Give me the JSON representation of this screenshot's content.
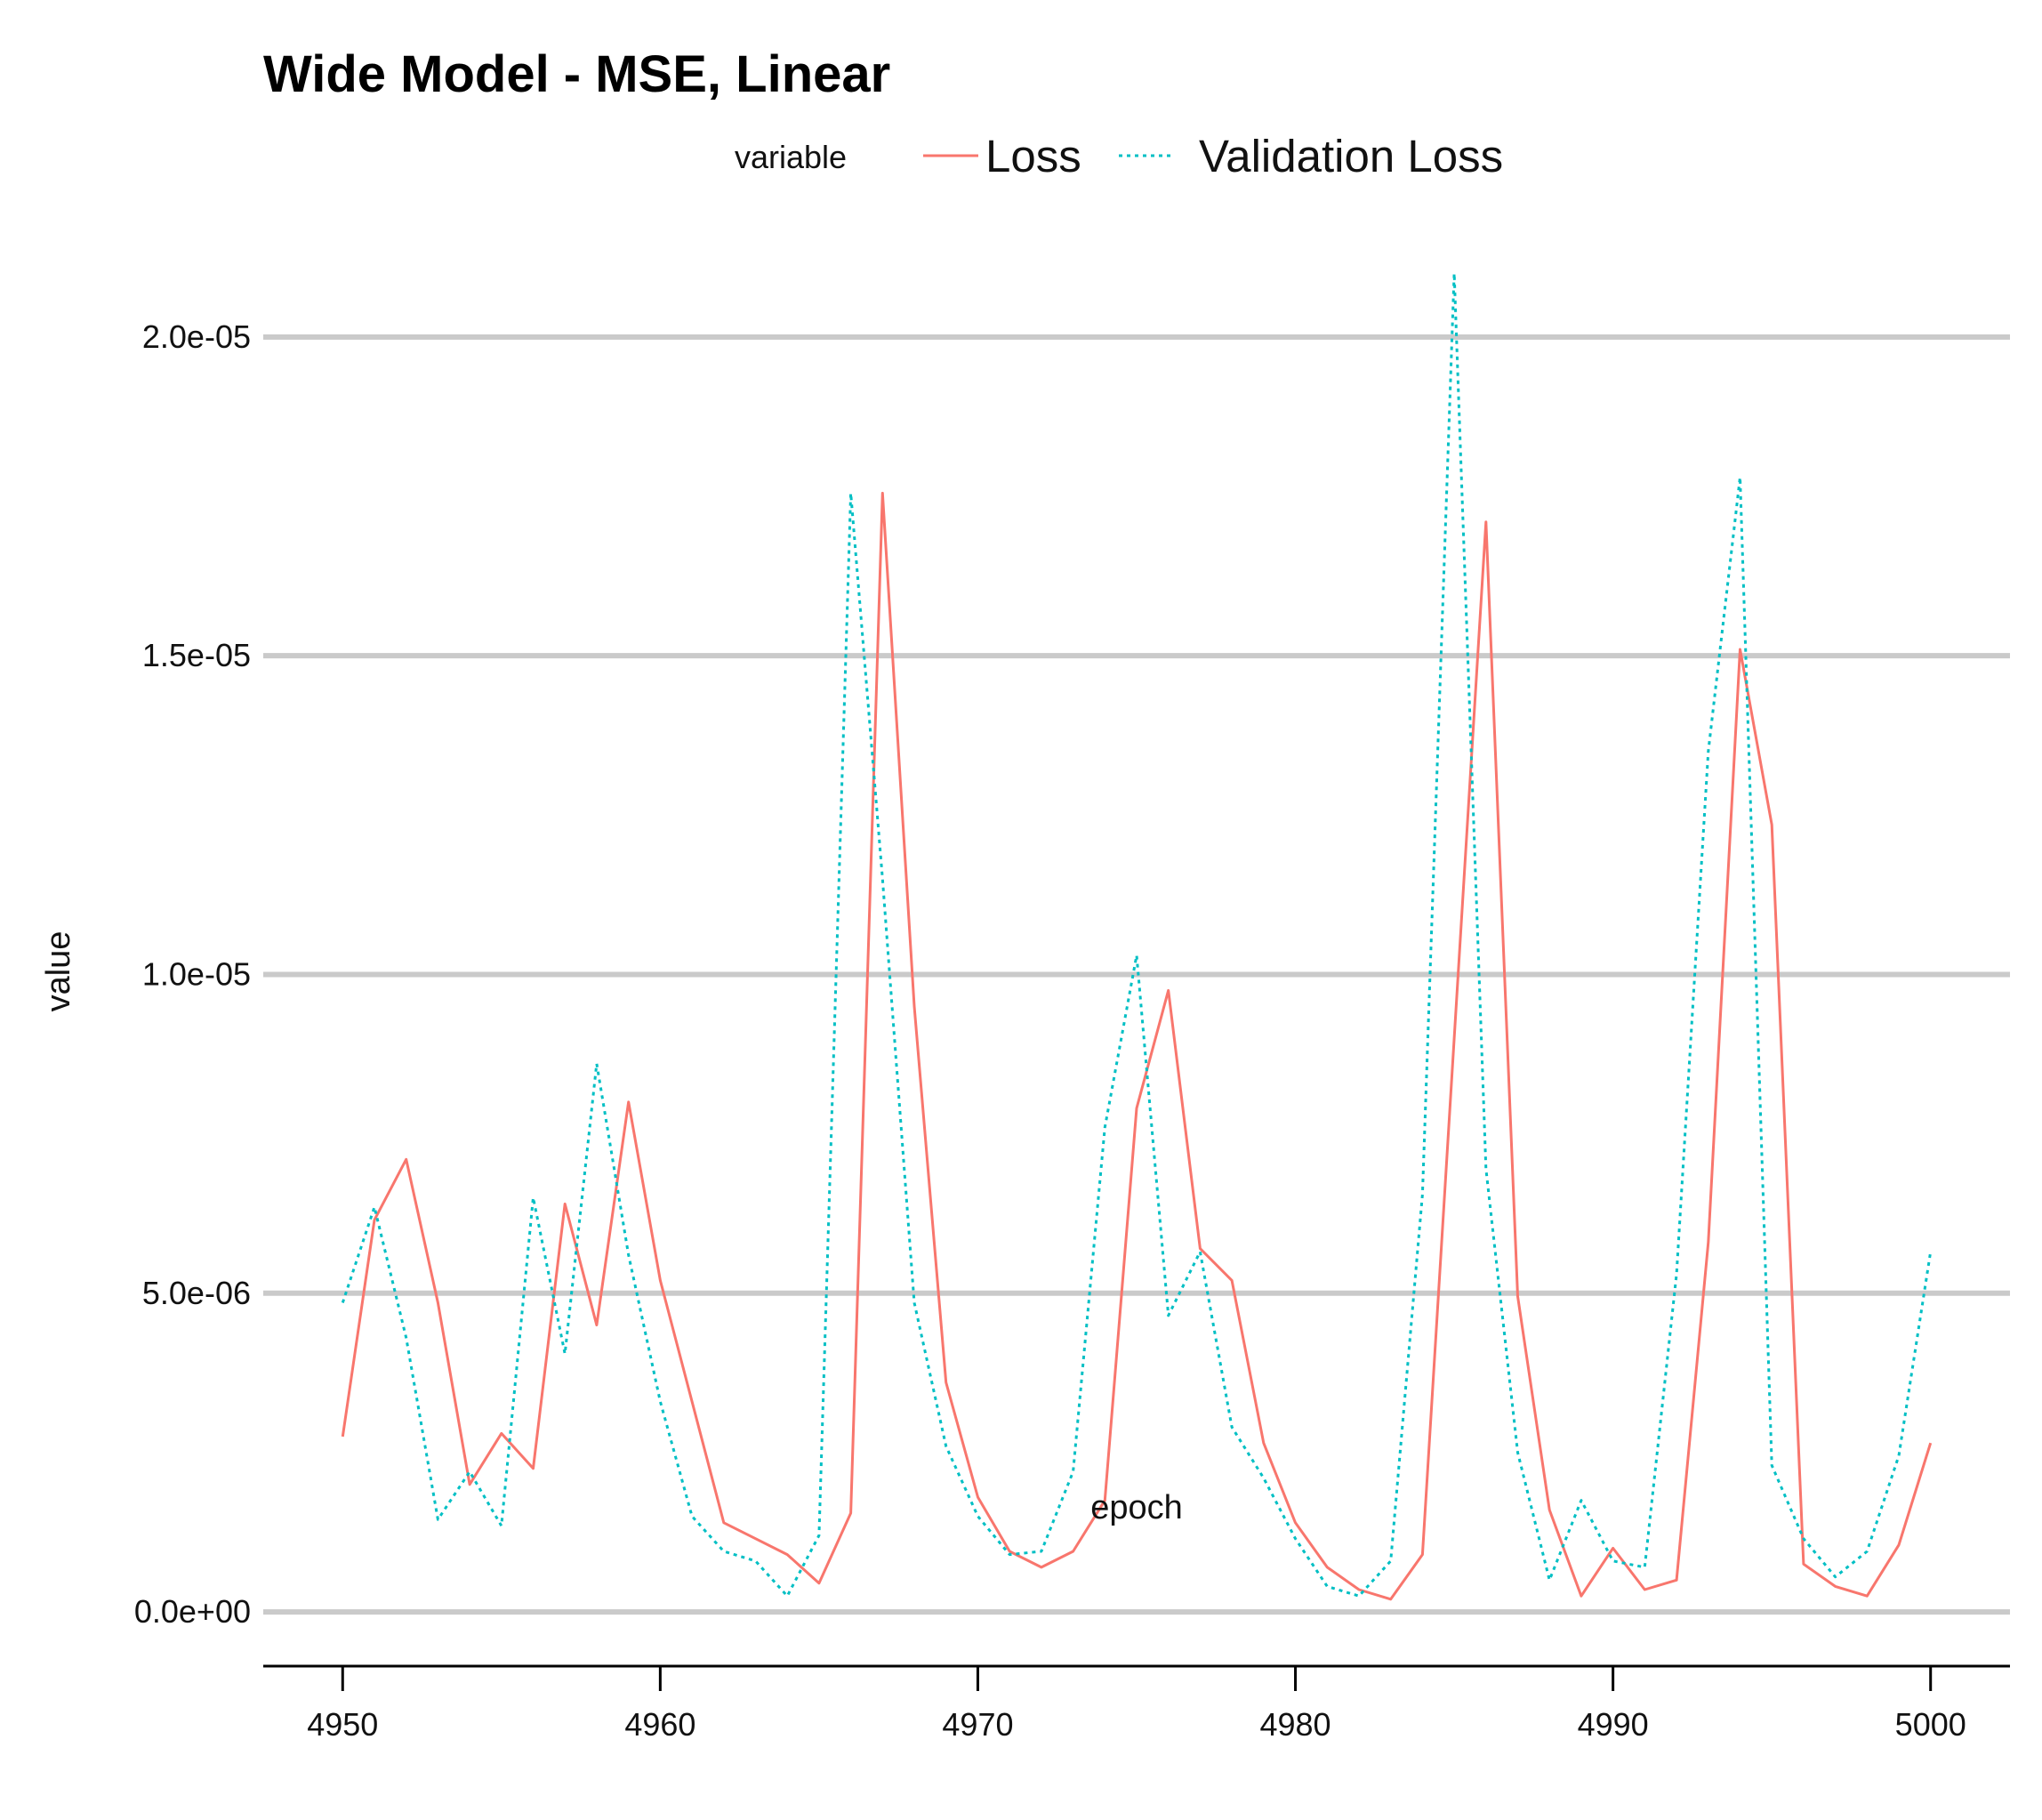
{
  "chart_data": {
    "type": "line",
    "title": "Wide Model - MSE, Linear",
    "xlabel": "epoch",
    "ylabel": "value",
    "legend_title": "variable",
    "legend_position": "top",
    "grid": "horizontal-major",
    "xlim": [
      4947.5,
      5002.5
    ],
    "ylim": [
      -8.5e-07,
      2.11e-05
    ],
    "x_ticks": [
      4950,
      4960,
      4970,
      4980,
      4990,
      5000
    ],
    "x_tick_labels": [
      "4950",
      "4960",
      "4970",
      "4980",
      "4990",
      "5000"
    ],
    "y_ticks": [
      0,
      5e-06,
      1e-05,
      1.5e-05,
      2e-05
    ],
    "y_tick_labels": [
      "0.0e+00",
      "5.0e-06",
      "1.0e-05",
      "1.5e-05",
      "2.0e-05"
    ],
    "x": [
      4950,
      4951,
      4952,
      4953,
      4954,
      4955,
      4956,
      4957,
      4958,
      4959,
      4960,
      4961,
      4962,
      4963,
      4964,
      4965,
      4966,
      4967,
      4968,
      4969,
      4970,
      4971,
      4972,
      4973,
      4974,
      4975,
      4976,
      4977,
      4978,
      4979,
      4980,
      4981,
      4982,
      4983,
      4984,
      4985,
      4986,
      4987,
      4988,
      4989,
      4990,
      4991,
      4992,
      4993,
      4994,
      4995,
      4996,
      4997,
      4998,
      4999,
      5000
    ],
    "series": [
      {
        "name": "Loss",
        "color": "#F8766D",
        "dash": "solid",
        "values": [
          2.75e-06,
          6.15e-06,
          7.1e-06,
          4.85e-06,
          2e-06,
          2.8e-06,
          2.25e-06,
          6.4e-06,
          4.5e-06,
          8e-06,
          5.2e-06,
          3.3e-06,
          1.4e-06,
          1.15e-06,
          9e-07,
          4.5e-07,
          1.55e-06,
          1.755e-05,
          9.5e-06,
          3.6e-06,
          1.8e-06,
          9.5e-07,
          7e-07,
          9.5e-07,
          1.75e-06,
          7.9e-06,
          9.75e-06,
          5.7e-06,
          5.2e-06,
          2.65e-06,
          1.4e-06,
          7e-07,
          3.5e-07,
          2e-07,
          9e-07,
          9e-06,
          1.71e-05,
          4.95e-06,
          1.6e-06,
          2.5e-07,
          1e-06,
          3.5e-07,
          5e-07,
          5.8e-06,
          1.51e-05,
          1.235e-05,
          7.5e-07,
          4e-07,
          2.5e-07,
          1.05e-06,
          2.65e-06
        ]
      },
      {
        "name": "Validation Loss",
        "color": "#00BFC4",
        "dash": "dotted",
        "values": [
          4.85e-06,
          6.35e-06,
          4.3e-06,
          1.45e-06,
          2.2e-06,
          1.35e-06,
          6.5e-06,
          4.05e-06,
          8.6e-06,
          5.6e-06,
          3.3e-06,
          1.5e-06,
          9.5e-07,
          8e-07,
          2.5e-07,
          1.2e-06,
          1.755e-05,
          1.15e-05,
          4.85e-06,
          2.6e-06,
          1.5e-06,
          9e-07,
          9.5e-07,
          2.2e-06,
          7.6e-06,
          1.03e-05,
          4.65e-06,
          5.65e-06,
          2.9e-06,
          2.1e-06,
          1.15e-06,
          4e-07,
          2.5e-07,
          8e-07,
          6.55e-06,
          2.1e-05,
          6.95e-06,
          2.5e-06,
          5e-07,
          1.75e-06,
          8e-07,
          7e-07,
          5.3e-06,
          1.35e-05,
          1.78e-05,
          2.3e-06,
          1.15e-06,
          5.5e-07,
          9.5e-07,
          2.45e-06,
          5.65e-06
        ]
      }
    ]
  }
}
